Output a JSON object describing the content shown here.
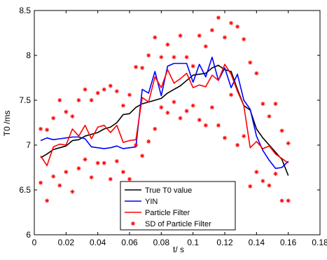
{
  "chart_data": {
    "type": "line",
    "xlabel": "t/ s",
    "ylabel": "T0 /ms",
    "xlim": [
      0,
      0.18
    ],
    "ylim": [
      6,
      8.5
    ],
    "xticks": [
      0,
      0.02,
      0.04,
      0.06,
      0.08,
      0.1,
      0.12,
      0.14,
      0.16,
      0.18
    ],
    "xtick_labels": [
      "0",
      "0.02",
      "0.04",
      "0.06",
      "0.08",
      "0.1",
      "0.12",
      "0.14",
      "0.16",
      "0.18"
    ],
    "yticks": [
      6,
      6.5,
      7,
      7.5,
      8,
      8.5
    ],
    "ytick_labels": [
      "6",
      "6.5",
      "7",
      "7.5",
      "8",
      "8.5"
    ],
    "grid": false,
    "legend_position": "bottom-center",
    "series": [
      {
        "name": "True T0 value",
        "color": "#000000",
        "style": "line",
        "x": [
          0.004,
          0.008,
          0.012,
          0.016,
          0.02,
          0.024,
          0.028,
          0.032,
          0.036,
          0.04,
          0.044,
          0.048,
          0.052,
          0.056,
          0.06,
          0.064,
          0.068,
          0.072,
          0.076,
          0.08,
          0.084,
          0.088,
          0.092,
          0.096,
          0.1,
          0.104,
          0.108,
          0.112,
          0.116,
          0.12,
          0.124,
          0.128,
          0.132,
          0.136,
          0.14,
          0.144,
          0.148,
          0.152,
          0.156,
          0.16
        ],
        "y": [
          6.86,
          6.9,
          6.95,
          6.97,
          6.99,
          7.05,
          7.06,
          7.1,
          7.12,
          7.14,
          7.18,
          7.2,
          7.25,
          7.34,
          7.35,
          7.42,
          7.46,
          7.48,
          7.5,
          7.52,
          7.58,
          7.62,
          7.66,
          7.72,
          7.78,
          7.79,
          7.8,
          7.86,
          7.89,
          7.84,
          7.82,
          7.62,
          7.44,
          7.39,
          7.18,
          7.08,
          7.0,
          6.92,
          6.84,
          6.66
        ]
      },
      {
        "name": "YIN",
        "color": "#0000ff",
        "style": "line",
        "x": [
          0.004,
          0.008,
          0.012,
          0.016,
          0.02,
          0.024,
          0.028,
          0.032,
          0.036,
          0.04,
          0.044,
          0.048,
          0.052,
          0.056,
          0.06,
          0.064,
          0.068,
          0.072,
          0.076,
          0.08,
          0.084,
          0.088,
          0.092,
          0.096,
          0.1,
          0.104,
          0.108,
          0.112,
          0.116,
          0.12,
          0.124,
          0.128,
          0.132,
          0.136,
          0.14,
          0.144,
          0.148,
          0.152,
          0.156,
          0.16
        ],
        "y": [
          7.05,
          7.08,
          7.06,
          7.07,
          7.08,
          7.09,
          7.09,
          7.07,
          6.98,
          6.97,
          6.96,
          6.97,
          6.99,
          6.96,
          6.97,
          6.98,
          7.62,
          7.58,
          7.82,
          7.55,
          7.88,
          7.91,
          7.91,
          7.91,
          7.7,
          7.9,
          7.76,
          7.98,
          7.72,
          7.86,
          7.64,
          7.79,
          7.5,
          7.4,
          7.1,
          6.94,
          6.83,
          6.74,
          6.75,
          6.82
        ]
      },
      {
        "name": "Particle Filter",
        "color": "#ff0000",
        "style": "line",
        "x": [
          0.004,
          0.008,
          0.012,
          0.016,
          0.02,
          0.024,
          0.028,
          0.032,
          0.036,
          0.04,
          0.044,
          0.048,
          0.052,
          0.056,
          0.06,
          0.064,
          0.068,
          0.072,
          0.076,
          0.08,
          0.084,
          0.088,
          0.092,
          0.096,
          0.1,
          0.104,
          0.108,
          0.112,
          0.116,
          0.12,
          0.124,
          0.128,
          0.132,
          0.136,
          0.14,
          0.144,
          0.148,
          0.152,
          0.156,
          0.16
        ],
        "y": [
          6.88,
          6.77,
          6.98,
          7.01,
          7.0,
          7.18,
          7.1,
          7.22,
          7.07,
          7.2,
          7.22,
          7.14,
          7.22,
          7.03,
          7.05,
          7.06,
          7.53,
          7.48,
          7.76,
          7.64,
          7.84,
          7.69,
          7.74,
          7.8,
          7.64,
          7.67,
          7.65,
          7.78,
          7.72,
          7.9,
          7.79,
          7.6,
          7.44,
          6.97,
          7.04,
          6.96,
          6.99,
          6.9,
          6.85,
          6.8
        ]
      },
      {
        "name": "SD of Particle Filter",
        "color": "#ff0000",
        "style": "marker",
        "marker": "*",
        "x": [
          0.004,
          0.004,
          0.008,
          0.008,
          0.012,
          0.012,
          0.016,
          0.016,
          0.02,
          0.02,
          0.024,
          0.024,
          0.028,
          0.028,
          0.032,
          0.032,
          0.036,
          0.036,
          0.04,
          0.04,
          0.044,
          0.044,
          0.048,
          0.048,
          0.052,
          0.052,
          0.056,
          0.056,
          0.06,
          0.06,
          0.064,
          0.064,
          0.068,
          0.068,
          0.072,
          0.072,
          0.076,
          0.076,
          0.08,
          0.08,
          0.084,
          0.084,
          0.088,
          0.088,
          0.092,
          0.092,
          0.096,
          0.096,
          0.1,
          0.1,
          0.104,
          0.104,
          0.108,
          0.108,
          0.112,
          0.112,
          0.116,
          0.116,
          0.12,
          0.12,
          0.124,
          0.124,
          0.128,
          0.128,
          0.132,
          0.132,
          0.136,
          0.136,
          0.14,
          0.14,
          0.144,
          0.144,
          0.148,
          0.148,
          0.152,
          0.152,
          0.156,
          0.156,
          0.16,
          0.16
        ],
        "y": [
          7.18,
          6.58,
          7.17,
          6.38,
          7.3,
          6.65,
          7.5,
          6.55,
          7.37,
          6.7,
          7.32,
          6.48,
          7.5,
          6.74,
          7.62,
          6.84,
          7.5,
          6.64,
          7.58,
          6.8,
          7.62,
          6.8,
          7.66,
          6.62,
          7.6,
          6.82,
          7.44,
          6.7,
          7.56,
          6.62,
          7.87,
          7.0,
          7.86,
          6.88,
          8.0,
          7.04,
          8.2,
          7.18,
          7.98,
          7.42,
          8.12,
          7.36,
          7.98,
          7.48,
          8.22,
          7.3,
          7.98,
          7.38,
          7.88,
          7.44,
          8.22,
          7.28,
          8.1,
          7.22,
          8.28,
          7.42,
          8.42,
          7.22,
          8.2,
          7.08,
          8.36,
          7.56,
          8.32,
          7.0,
          8.18,
          7.1,
          7.92,
          6.54,
          7.8,
          6.7,
          7.46,
          6.6,
          7.32,
          6.55,
          7.46,
          6.68,
          7.16,
          6.38,
          7.02,
          6.38
        ]
      }
    ]
  }
}
